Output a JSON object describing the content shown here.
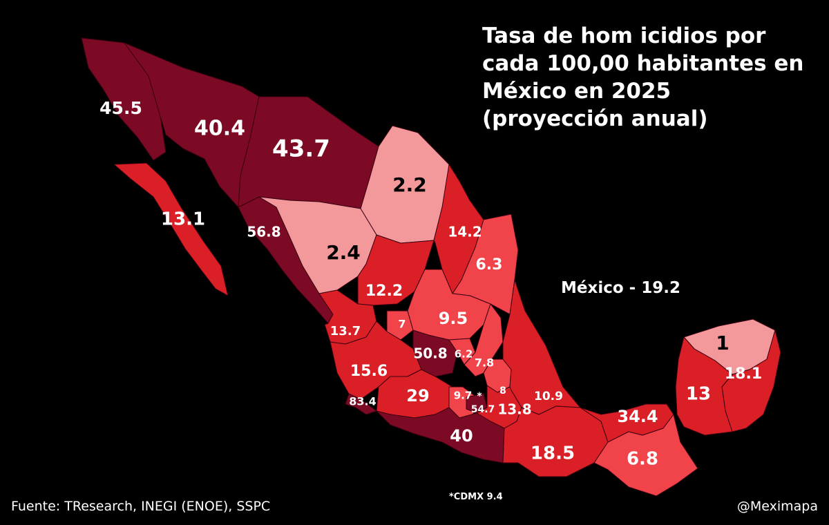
{
  "title": "Tasa de hom icidios por cada 100,00 habitantes en México en 2025 (proyección anual)",
  "national": "México - 19.2",
  "source": "Fuente: TResearch, INEGI (ENOE), SSPC",
  "credit": "@Meximapa",
  "note": "*CDMX 9.4",
  "cdmx_marker": "*",
  "colors": {
    "very_high": "#7d0a25",
    "high": "#db1f26",
    "medium": "#f0434a",
    "low": "#f3999c",
    "background": "#000000"
  },
  "states": [
    {
      "label": "45.5",
      "level": "very_high"
    },
    {
      "label": "40.4",
      "level": "very_high"
    },
    {
      "label": "43.7",
      "level": "very_high"
    },
    {
      "label": "2.2",
      "level": "low"
    },
    {
      "label": "13.1",
      "level": "high"
    },
    {
      "label": "56.8",
      "level": "very_high"
    },
    {
      "label": "2.4",
      "level": "low"
    },
    {
      "label": "14.2",
      "level": "high"
    },
    {
      "label": "6.3",
      "level": "medium"
    },
    {
      "label": "12.2",
      "level": "high"
    },
    {
      "label": "7",
      "level": "medium"
    },
    {
      "label": "9.5",
      "level": "medium"
    },
    {
      "label": "13.7",
      "level": "high"
    },
    {
      "label": "50.8",
      "level": "very_high"
    },
    {
      "label": "6.2",
      "level": "medium"
    },
    {
      "label": "7.8",
      "level": "medium"
    },
    {
      "label": "15.6",
      "level": "high"
    },
    {
      "label": "29",
      "level": "high"
    },
    {
      "label": "9.7",
      "level": "medium"
    },
    {
      "label": "8",
      "level": "medium"
    },
    {
      "label": "10.9",
      "level": "high"
    },
    {
      "label": "54.7",
      "level": "very_high"
    },
    {
      "label": "13.8",
      "level": "high"
    },
    {
      "label": "83.4",
      "level": "very_high"
    },
    {
      "label": "40",
      "level": "very_high"
    },
    {
      "label": "18.5",
      "level": "high"
    },
    {
      "label": "34.4",
      "level": "high"
    },
    {
      "label": "6.8",
      "level": "medium"
    },
    {
      "label": "1",
      "level": "low"
    },
    {
      "label": "18.1",
      "level": "high"
    },
    {
      "label": "13",
      "level": "high"
    }
  ]
}
